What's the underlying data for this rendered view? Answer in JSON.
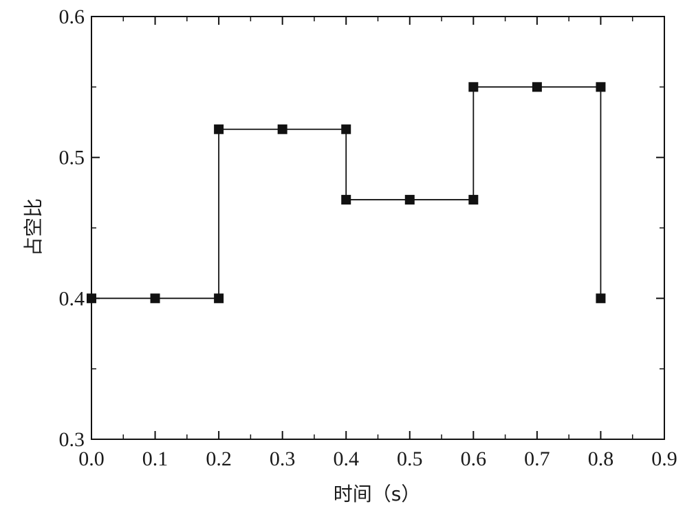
{
  "chart_data": {
    "type": "line",
    "title": "",
    "xlabel": "时间（s）",
    "ylabel": "占空比",
    "xlim": [
      0.0,
      0.9
    ],
    "ylim": [
      0.3,
      0.6
    ],
    "x_ticks": [
      "0.0",
      "0.1",
      "0.2",
      "0.3",
      "0.4",
      "0.5",
      "0.6",
      "0.7",
      "0.8",
      "0.9"
    ],
    "y_ticks": [
      "0.3",
      "0.4",
      "0.5",
      "0.6"
    ],
    "grid": false,
    "marker": "square",
    "series": [
      {
        "points": [
          [
            0.0,
            0.4
          ],
          [
            0.1,
            0.4
          ],
          [
            0.2,
            0.4
          ],
          [
            0.2,
            0.52
          ],
          [
            0.3,
            0.52
          ],
          [
            0.4,
            0.52
          ],
          [
            0.4,
            0.47
          ],
          [
            0.5,
            0.47
          ],
          [
            0.6,
            0.47
          ],
          [
            0.6,
            0.55
          ],
          [
            0.7,
            0.55
          ],
          [
            0.8,
            0.55
          ],
          [
            0.8,
            0.4
          ]
        ]
      }
    ],
    "colors": {
      "line": "#111111",
      "marker": "#111111",
      "axis": "#111111"
    }
  }
}
